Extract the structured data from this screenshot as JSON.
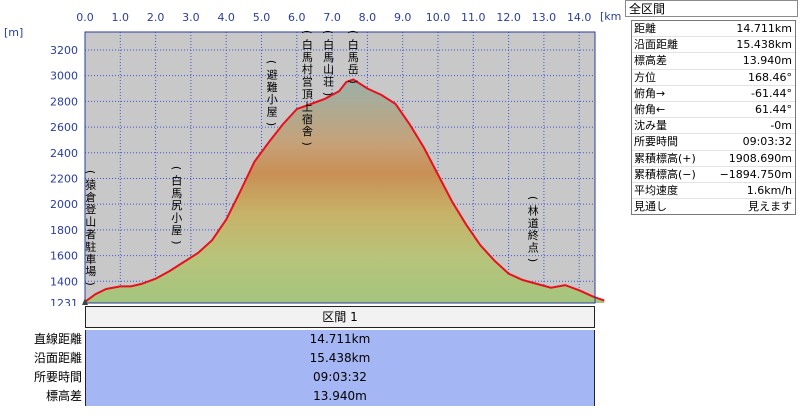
{
  "chart_data": {
    "type": "area",
    "xlabel": "[km]",
    "ylabel": "[m]",
    "xlim": [
      0,
      14.711
    ],
    "ylim": [
      1231,
      3300
    ],
    "x_ticks": [
      "0.0",
      "1.0",
      "2.0",
      "3.0",
      "4.0",
      "5.0",
      "6.0",
      "7.0",
      "8.0",
      "9.0",
      "10.0",
      "11.0",
      "12.0",
      "13.0",
      "14.0"
    ],
    "y_ticks": [
      "3200",
      "3000",
      "2800",
      "2600",
      "2400",
      "2200",
      "2000",
      "1800",
      "1600",
      "1400",
      "1231"
    ],
    "series": [
      {
        "x": [
          0,
          0.3,
          0.6,
          1.0,
          1.3,
          1.6,
          2.0,
          2.4,
          2.8,
          3.2,
          3.6,
          4.0,
          4.4,
          4.8,
          5.2,
          5.6,
          6.0,
          6.2,
          6.4,
          6.8,
          7.2,
          7.4,
          7.6,
          8.0,
          8.4,
          8.8,
          9.2,
          9.6,
          10.0,
          10.4,
          10.8,
          11.2,
          11.6,
          12.0,
          12.4,
          12.8,
          13.2,
          13.6,
          14.0,
          14.4,
          14.711
        ],
        "y": [
          1240,
          1300,
          1340,
          1360,
          1360,
          1380,
          1420,
          1480,
          1550,
          1620,
          1720,
          1880,
          2100,
          2330,
          2480,
          2620,
          2740,
          2760,
          2780,
          2820,
          2880,
          2950,
          2970,
          2900,
          2850,
          2780,
          2620,
          2440,
          2230,
          2020,
          1840,
          1680,
          1560,
          1460,
          1410,
          1380,
          1350,
          1370,
          1330,
          1280,
          1250
        ]
      }
    ],
    "landmarks": [
      {
        "label": "猿倉登山者駐車場",
        "x": 0.05
      },
      {
        "label": "白馬尻小屋",
        "x": 2.6
      },
      {
        "label": "避難小屋",
        "x": 5.3
      },
      {
        "label": "白馬村営頂上宿舎",
        "x": 6.3
      },
      {
        "label": "白馬山荘",
        "x": 6.9
      },
      {
        "label": "白馬岳",
        "x": 7.6
      },
      {
        "label": "林道終点",
        "x": 12.7
      }
    ]
  },
  "segment": {
    "header": "区間 1",
    "rows": [
      {
        "label": "直線距離",
        "value": "14.711km"
      },
      {
        "label": "沿面距離",
        "value": "15.438km"
      },
      {
        "label": "所要時間",
        "value": "09:03:32"
      },
      {
        "label": "標高差",
        "value": "13.940m"
      }
    ]
  },
  "info_panel": {
    "title": "全区間",
    "rows": [
      {
        "label": "距離",
        "value": "14.711km"
      },
      {
        "label": "沿面距離",
        "value": "15.438km"
      },
      {
        "label": "標高差",
        "value": "13.940m"
      },
      {
        "label": "方位",
        "value": "168.46°"
      },
      {
        "label": "俯角→",
        "value": "-61.44°"
      },
      {
        "label": "俯角←",
        "value": "61.44°"
      },
      {
        "label": "沈み量",
        "value": "-0m"
      },
      {
        "label": "所要時間",
        "value": "09:03:32"
      },
      {
        "label": "累積標高(+)",
        "value": "1908.690m"
      },
      {
        "label": "累積標高(−)",
        "value": "−1894.750m"
      },
      {
        "label": "平均速度",
        "value": "1.6km/h"
      },
      {
        "label": "見通し",
        "value": "見えます"
      }
    ]
  },
  "colors": {
    "profile_line": "#e8101c",
    "grid": "#3a55d6",
    "plot_background": "#c8c8c8",
    "table_value_bg": "#a5b6f4"
  }
}
